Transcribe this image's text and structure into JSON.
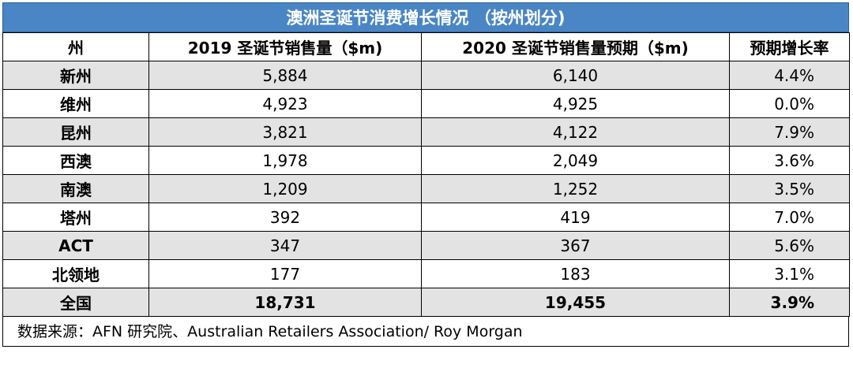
{
  "chart_data": {
    "type": "table",
    "title": "澳洲圣诞节消费增长情况 （按州划分)",
    "columns": [
      "州",
      "2019 圣诞节销售量（$m)",
      "2020 圣诞节销售量预期（$m)",
      "预期增长率"
    ],
    "rows": [
      {
        "state": "新州",
        "sales_2019": "5,884",
        "sales_2020": "6,140",
        "growth": "4.4%"
      },
      {
        "state": "维州",
        "sales_2019": "4,923",
        "sales_2020": "4,925",
        "growth": "0.0%"
      },
      {
        "state": "昆州",
        "sales_2019": "3,821",
        "sales_2020": "4,122",
        "growth": "7.9%"
      },
      {
        "state": "西澳",
        "sales_2019": "1,978",
        "sales_2020": "2,049",
        "growth": "3.6%"
      },
      {
        "state": "南澳",
        "sales_2019": "1,209",
        "sales_2020": "1,252",
        "growth": "3.5%"
      },
      {
        "state": "塔州",
        "sales_2019": "392",
        "sales_2020": "419",
        "growth": "7.0%"
      },
      {
        "state": "ACT",
        "sales_2019": "347",
        "sales_2020": "367",
        "growth": "5.6%"
      },
      {
        "state": "北领地",
        "sales_2019": "177",
        "sales_2020": "183",
        "growth": "3.1%"
      }
    ],
    "total": {
      "state": "全国",
      "sales_2019": "18,731",
      "sales_2020": "19,455",
      "growth": "3.9%"
    },
    "source": "数据来源：AFN 研究院、Australian Retailers Association/ Roy Morgan"
  },
  "colors": {
    "title_bg": "#4a86c5",
    "shaded_row": "#e3e3e3"
  }
}
